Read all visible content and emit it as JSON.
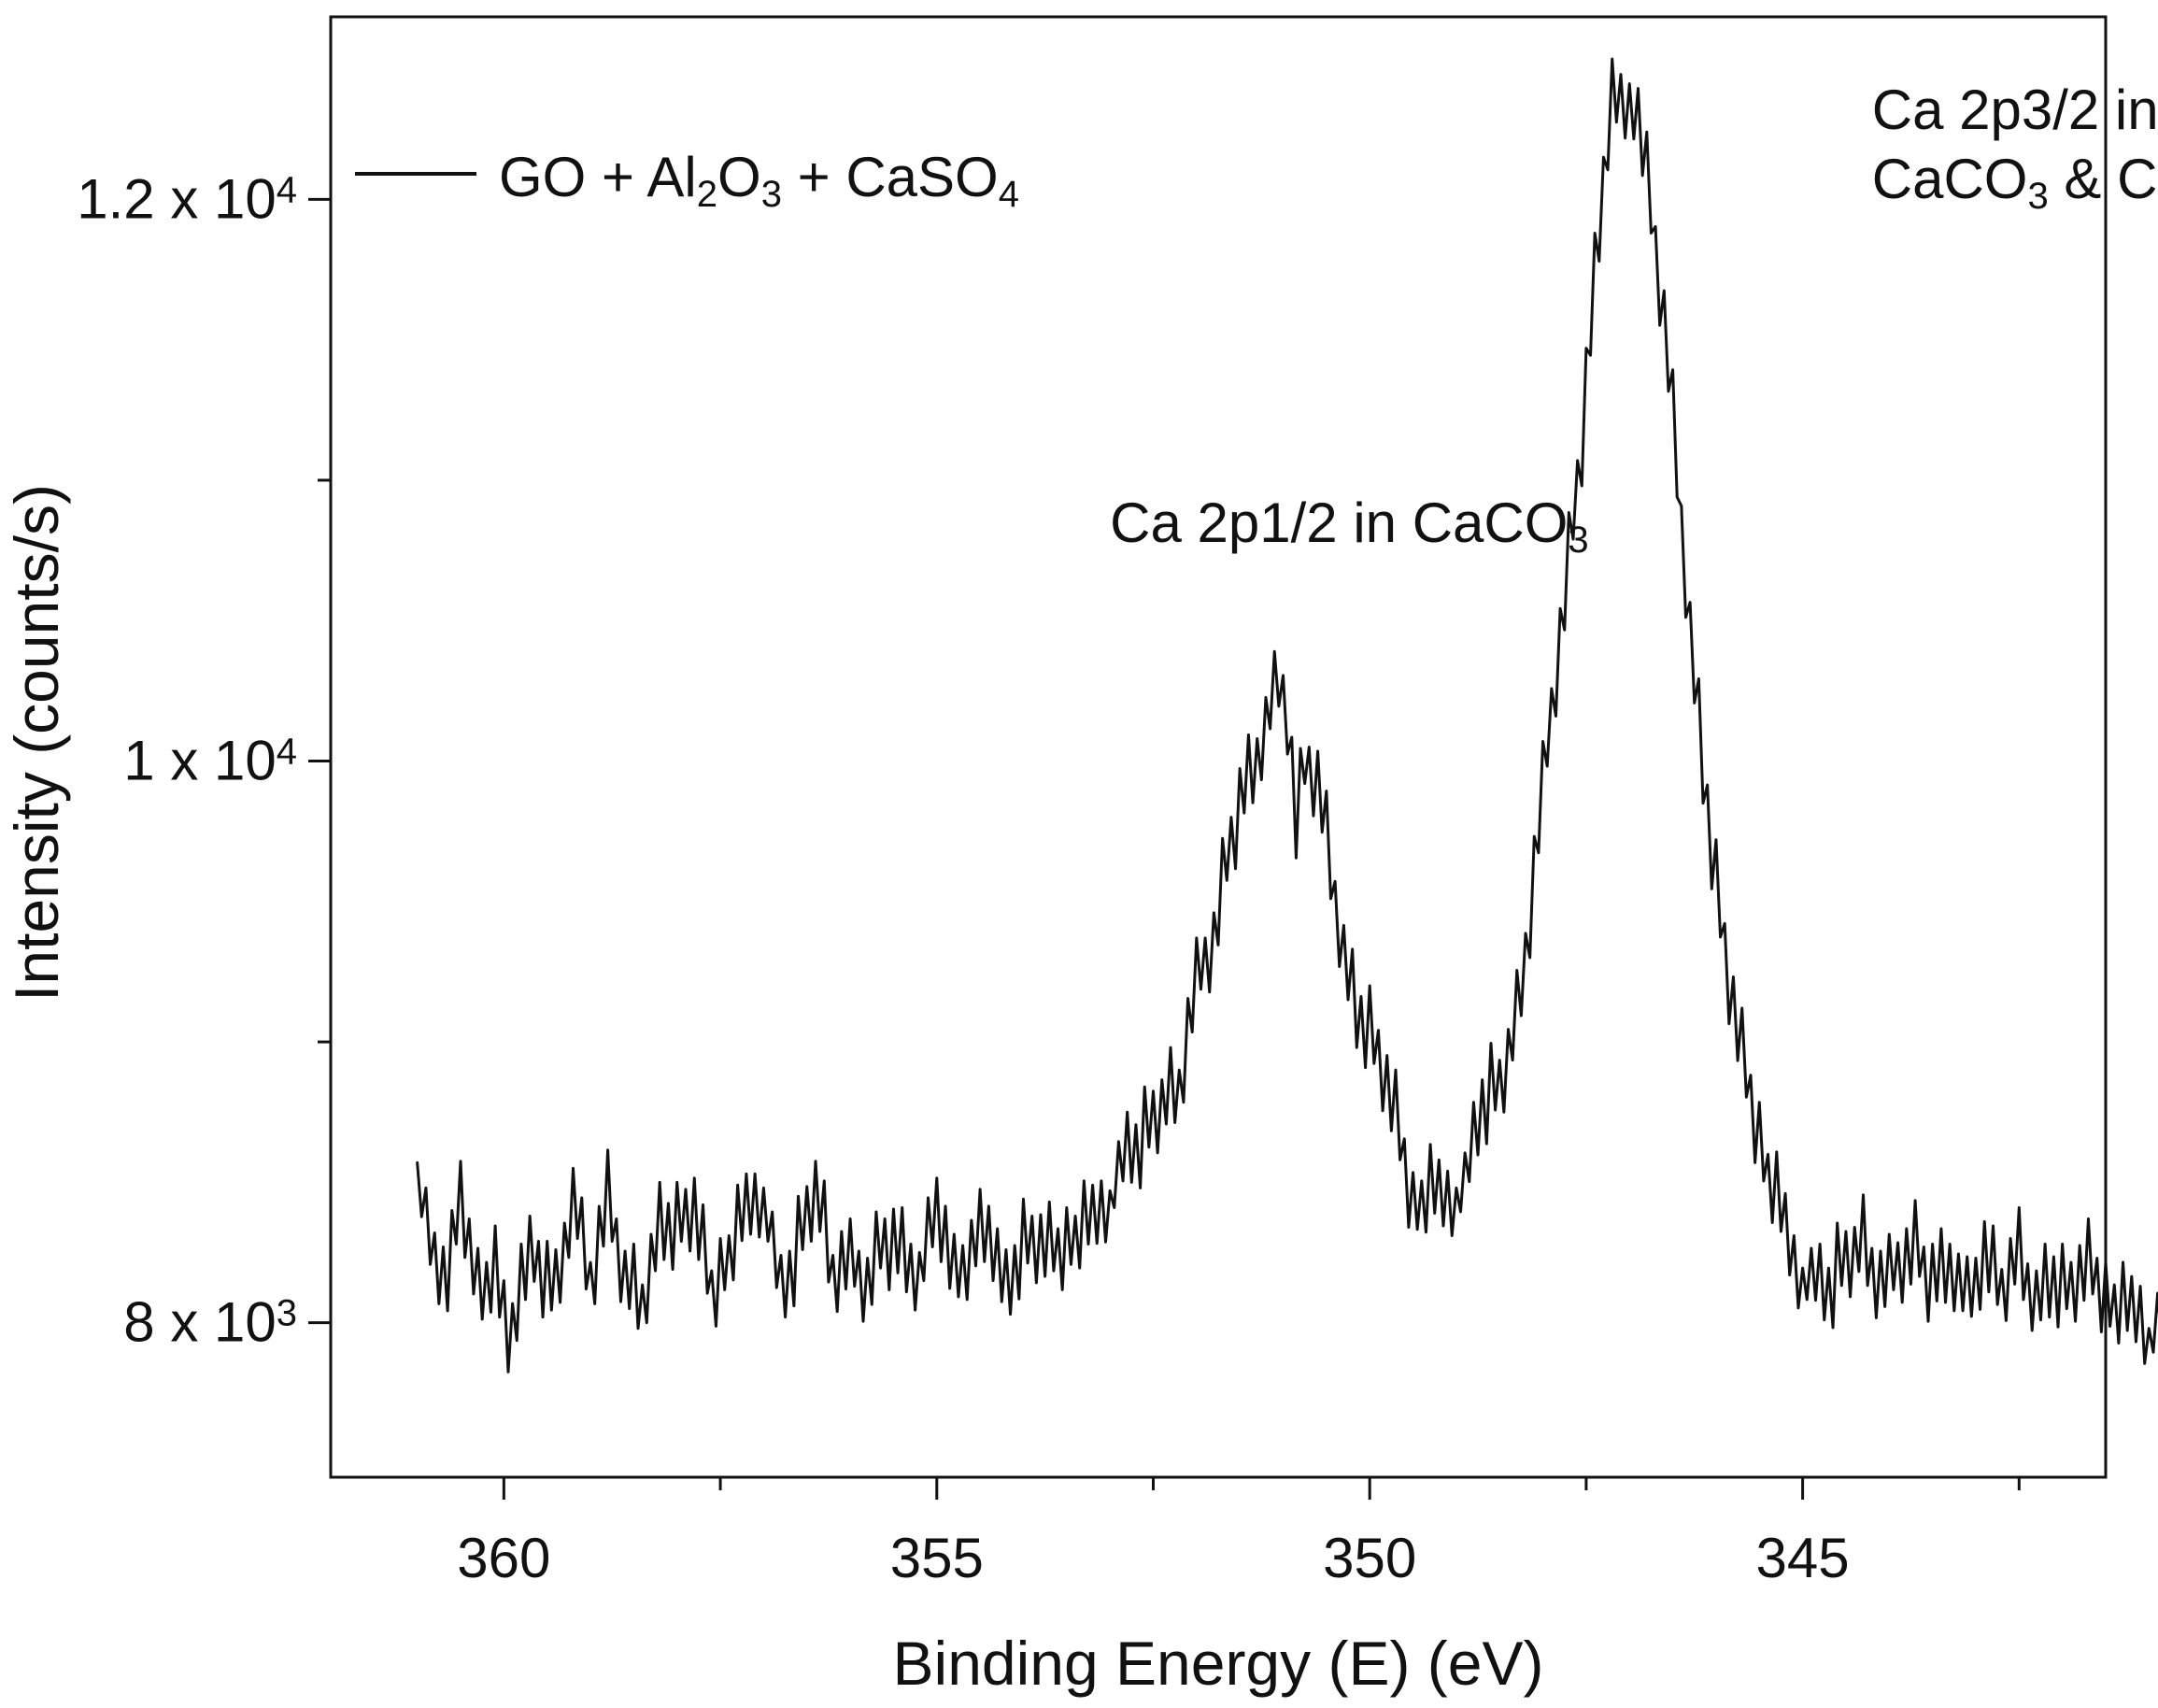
{
  "chart_data": {
    "type": "line",
    "title": "",
    "xlabel": "Binding Energy (E) (eV)",
    "ylabel": "Intensity (counts/s)",
    "xlim": [
      362,
      341.5
    ],
    "ylim": [
      7450,
      12650
    ],
    "x_ticks": [
      {
        "value": 360,
        "label": "360"
      },
      {
        "value": 355,
        "label": "355"
      },
      {
        "value": 350,
        "label": "350"
      },
      {
        "value": 345,
        "label": "345"
      }
    ],
    "x_minor_ticks": [
      357.5,
      352.5,
      347.5,
      342.5
    ],
    "y_ticks": [
      {
        "value": 8000,
        "mantissa": "8 x 10",
        "exponent": "3"
      },
      {
        "value": 10000,
        "mantissa": "1 x 10",
        "exponent": "4"
      },
      {
        "value": 12000,
        "mantissa": "1.2 x 10",
        "exponent": "4"
      }
    ],
    "y_minor_ticks": [
      9000,
      11000
    ],
    "legend": {
      "placement": "top-left",
      "parts": [
        {
          "text": "GO + Al",
          "sub": false
        },
        {
          "text": "2",
          "sub": true
        },
        {
          "text": "O",
          "sub": false
        },
        {
          "text": "3",
          "sub": true
        },
        {
          "text": " + CaSO",
          "sub": false
        },
        {
          "text": "4",
          "sub": true
        }
      ]
    },
    "annotations": [
      {
        "name": "annotation-ca-2p1-2",
        "at_x": 353.0,
        "at_y": 10780,
        "lines": [
          [
            {
              "text": "Ca 2p1/2 in CaCO",
              "sub": false
            },
            {
              "text": "3",
              "sub": true
            }
          ]
        ]
      },
      {
        "name": "annotation-ca-2p3-2",
        "at_x": 344.2,
        "at_y": 12250,
        "lines": [
          [
            {
              "text": "Ca 2p3/2 in",
              "sub": false
            }
          ],
          [
            {
              "text": "CaCO",
              "sub": false
            },
            {
              "text": "3",
              "sub": true
            },
            {
              "text": " & CaO",
              "sub": false
            }
          ]
        ]
      }
    ],
    "series": [
      {
        "name": "GO + Al2O3 + CaSO4",
        "color": "#111111",
        "x_start": 361.0,
        "x_step": -0.05,
        "base_points": [
          [
            361.0,
            8570
          ],
          [
            360.8,
            8180
          ],
          [
            360.6,
            8210
          ],
          [
            360.5,
            8460
          ],
          [
            360.3,
            8090
          ],
          [
            360.1,
            8220
          ],
          [
            359.95,
            7890
          ],
          [
            359.8,
            8170
          ],
          [
            359.6,
            8220
          ],
          [
            359.4,
            8100
          ],
          [
            359.2,
            8450
          ],
          [
            359.0,
            8150
          ],
          [
            358.8,
            8440
          ],
          [
            358.6,
            8120
          ],
          [
            358.4,
            8080
          ],
          [
            358.2,
            8340
          ],
          [
            358.0,
            8360
          ],
          [
            357.8,
            8400
          ],
          [
            357.6,
            8100
          ],
          [
            357.4,
            8250
          ],
          [
            357.2,
            8420
          ],
          [
            357.0,
            8480
          ],
          [
            356.8,
            8100
          ],
          [
            356.6,
            8260
          ],
          [
            356.4,
            8480
          ],
          [
            356.2,
            8180
          ],
          [
            356.0,
            8220
          ],
          [
            355.8,
            8120
          ],
          [
            355.6,
            8300
          ],
          [
            355.4,
            8250
          ],
          [
            355.2,
            8150
          ],
          [
            355.0,
            8450
          ],
          [
            354.8,
            8140
          ],
          [
            354.6,
            8230
          ],
          [
            354.4,
            8360
          ],
          [
            354.2,
            8100
          ],
          [
            354.0,
            8300
          ],
          [
            353.8,
            8270
          ],
          [
            353.6,
            8250
          ],
          [
            353.4,
            8320
          ],
          [
            353.2,
            8380
          ],
          [
            353.0,
            8470
          ],
          [
            352.8,
            8610
          ],
          [
            352.6,
            8650
          ],
          [
            352.4,
            8770
          ],
          [
            352.2,
            8840
          ],
          [
            352.0,
            9220
          ],
          [
            351.8,
            9350
          ],
          [
            351.6,
            9730
          ],
          [
            351.45,
            9900
          ],
          [
            351.3,
            10000
          ],
          [
            351.15,
            10190
          ],
          [
            351.05,
            10300
          ],
          [
            350.95,
            10180
          ],
          [
            350.85,
            9750
          ],
          [
            350.75,
            9990
          ],
          [
            350.6,
            9900
          ],
          [
            350.45,
            9620
          ],
          [
            350.3,
            9310
          ],
          [
            350.15,
            9100
          ],
          [
            350.0,
            9060
          ],
          [
            349.85,
            8890
          ],
          [
            349.7,
            8730
          ],
          [
            349.5,
            8410
          ],
          [
            349.3,
            8480
          ],
          [
            349.1,
            8460
          ],
          [
            348.9,
            8500
          ],
          [
            348.7,
            8790
          ],
          [
            348.5,
            8820
          ],
          [
            348.3,
            9080
          ],
          [
            348.15,
            9450
          ],
          [
            348.0,
            9920
          ],
          [
            347.85,
            10300
          ],
          [
            347.7,
            10700
          ],
          [
            347.55,
            11150
          ],
          [
            347.4,
            11720
          ],
          [
            347.3,
            12070
          ],
          [
            347.2,
            12400
          ],
          [
            347.1,
            12300
          ],
          [
            346.95,
            12370
          ],
          [
            346.85,
            12180
          ],
          [
            346.75,
            11950
          ],
          [
            346.6,
            11540
          ],
          [
            346.45,
            11050
          ],
          [
            346.3,
            10460
          ],
          [
            346.15,
            9970
          ],
          [
            346.0,
            9580
          ],
          [
            345.85,
            9200
          ],
          [
            345.7,
            8950
          ],
          [
            345.55,
            8720
          ],
          [
            345.4,
            8540
          ],
          [
            345.25,
            8410
          ],
          [
            345.1,
            8230
          ],
          [
            344.9,
            8160
          ],
          [
            344.7,
            8120
          ],
          [
            344.5,
            8210
          ],
          [
            344.3,
            8280
          ],
          [
            344.1,
            8130
          ],
          [
            343.9,
            8200
          ],
          [
            343.7,
            8250
          ],
          [
            343.5,
            8150
          ],
          [
            343.3,
            8200
          ],
          [
            343.1,
            8090
          ],
          [
            342.9,
            8240
          ],
          [
            342.7,
            8100
          ],
          [
            342.5,
            8230
          ],
          [
            342.3,
            8080
          ],
          [
            342.1,
            8160
          ],
          [
            341.9,
            8120
          ],
          [
            341.7,
            8200
          ],
          [
            341.5,
            8090
          ],
          [
            341.3,
            8060
          ],
          [
            341.1,
            8050
          ],
          [
            341.0,
            7980
          ],
          [
            340.9,
            8000
          ],
          [
            340.8,
            7970
          ]
        ],
        "noise_sequence": [
          0,
          -95,
          105,
          -70,
          140,
          -120,
          75,
          -160,
          190,
          -55,
          115,
          -135,
          95,
          -80,
          175,
          -110,
          60,
          -150,
          125,
          -90,
          150,
          -65,
          85,
          -140,
          110,
          -100,
          185,
          -60,
          70,
          -170,
          130,
          -85,
          160,
          -115,
          80,
          -130,
          100,
          -75,
          145,
          -105,
          65,
          -155,
          120,
          -95,
          175,
          -70,
          90,
          -125,
          135,
          -60,
          180,
          -110,
          55,
          -145,
          105,
          -90,
          160,
          -120,
          75,
          -165,
          140,
          -80,
          95,
          -135,
          115,
          -100,
          170,
          -70,
          85,
          -150,
          125,
          -95,
          60,
          -140,
          155,
          -85,
          110,
          -120,
          80,
          -160
        ]
      }
    ]
  }
}
